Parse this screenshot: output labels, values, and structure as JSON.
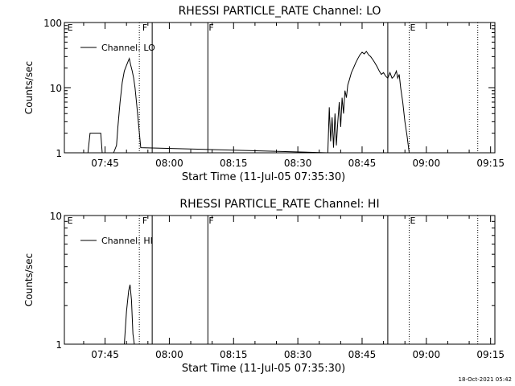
{
  "footer": {
    "timestamp": "18-Oct-2021 05:42"
  },
  "chart_data": [
    {
      "type": "line",
      "title": "RHESSI PARTICLE_RATE Channel: LO",
      "xlabel": "Start Time (11-Jul-05 07:35:30)",
      "ylabel": "Counts/sec",
      "yscale": "log",
      "xlim": [
        "07:35:30",
        "09:16:00"
      ],
      "ylim": [
        1,
        100
      ],
      "xticks": [
        "07:45",
        "08:00",
        "08:15",
        "08:30",
        "08:45",
        "09:00",
        "09:15"
      ],
      "yticks": [
        "1",
        "10",
        "100"
      ],
      "legend": {
        "label": "Channel: LO",
        "position": "top-left"
      },
      "markers": [
        {
          "time": "07:36:00",
          "label": "E",
          "style": "none"
        },
        {
          "time": "07:53:00",
          "label": "",
          "style": "dotted"
        },
        {
          "time": "07:53:30",
          "label": "F",
          "style": "none"
        },
        {
          "time": "07:56:00",
          "label": "",
          "style": "solid"
        },
        {
          "time": "08:09:00",
          "label": "F",
          "style": "solid"
        },
        {
          "time": "08:51:00",
          "label": "",
          "style": "solid"
        },
        {
          "time": "08:56:00",
          "label": "E",
          "style": "dotted"
        },
        {
          "time": "09:12:00",
          "label": "",
          "style": "dotted"
        }
      ],
      "series": [
        {
          "points": [
            [
              "07:41:00",
              1
            ],
            [
              "07:41:30",
              2
            ],
            [
              "07:42:00",
              2
            ],
            [
              "07:43:00",
              2
            ],
            [
              "07:44:00",
              2
            ],
            [
              "07:44:20",
              1
            ],
            [
              "07:45:00",
              1
            ],
            [
              "07:46:00",
              1
            ],
            [
              "07:47:00",
              1
            ],
            [
              "07:47:40",
              1.3
            ],
            [
              "07:48:00",
              2.5
            ],
            [
              "07:48:30",
              6
            ],
            [
              "07:49:00",
              12
            ],
            [
              "07:49:30",
              18
            ],
            [
              "07:50:00",
              22
            ],
            [
              "07:50:20",
              25
            ],
            [
              "07:50:40",
              28
            ],
            [
              "07:51:00",
              22
            ],
            [
              "07:51:20",
              18
            ],
            [
              "07:51:40",
              14
            ],
            [
              "07:52:00",
              10
            ],
            [
              "07:52:20",
              6
            ],
            [
              "07:52:40",
              3.5
            ],
            [
              "07:53:00",
              2
            ],
            [
              "07:53:20",
              1.2
            ],
            [
              "08:37:00",
              1
            ],
            [
              "08:37:20",
              5
            ],
            [
              "08:37:40",
              1.5
            ],
            [
              "08:38:00",
              3.5
            ],
            [
              "08:38:20",
              1.2
            ],
            [
              "08:38:40",
              4
            ],
            [
              "08:39:00",
              1.3
            ],
            [
              "08:39:20",
              3
            ],
            [
              "08:39:40",
              6
            ],
            [
              "08:40:00",
              2.5
            ],
            [
              "08:40:20",
              7
            ],
            [
              "08:40:40",
              4
            ],
            [
              "08:41:00",
              9
            ],
            [
              "08:41:20",
              7
            ],
            [
              "08:41:40",
              11
            ],
            [
              "08:42:00",
              13
            ],
            [
              "08:42:30",
              17
            ],
            [
              "08:43:00",
              20
            ],
            [
              "08:43:30",
              24
            ],
            [
              "08:44:00",
              28
            ],
            [
              "08:44:30",
              32
            ],
            [
              "08:45:00",
              35
            ],
            [
              "08:45:30",
              33
            ],
            [
              "08:46:00",
              36
            ],
            [
              "08:46:30",
              32
            ],
            [
              "08:47:00",
              30
            ],
            [
              "08:47:30",
              27
            ],
            [
              "08:48:00",
              24
            ],
            [
              "08:48:30",
              21
            ],
            [
              "08:49:00",
              18
            ],
            [
              "08:49:30",
              16
            ],
            [
              "08:50:00",
              17
            ],
            [
              "08:50:30",
              15
            ],
            [
              "08:51:00",
              14
            ],
            [
              "08:51:30",
              17
            ],
            [
              "08:52:00",
              14
            ],
            [
              "08:52:30",
              15
            ],
            [
              "08:53:00",
              18
            ],
            [
              "08:53:20",
              14
            ],
            [
              "08:53:40",
              16
            ],
            [
              "08:54:00",
              10
            ],
            [
              "08:54:30",
              6
            ],
            [
              "08:55:00",
              3
            ],
            [
              "08:55:30",
              1.8
            ],
            [
              "08:56:00",
              1
            ]
          ]
        }
      ]
    },
    {
      "type": "line",
      "title": "RHESSI PARTICLE_RATE Channel: HI",
      "xlabel": "Start Time (11-Jul-05 07:35:30)",
      "ylabel": "Counts/sec",
      "yscale": "log",
      "xlim": [
        "07:35:30",
        "09:16:00"
      ],
      "ylim": [
        1,
        10
      ],
      "xticks": [
        "07:45",
        "08:00",
        "08:15",
        "08:30",
        "08:45",
        "09:00",
        "09:15"
      ],
      "yticks": [
        "1",
        "10"
      ],
      "legend": {
        "label": "Channel: HI",
        "position": "top-left"
      },
      "markers": [
        {
          "time": "07:36:00",
          "label": "E",
          "style": "none"
        },
        {
          "time": "07:53:00",
          "label": "",
          "style": "dotted"
        },
        {
          "time": "07:53:30",
          "label": "F",
          "style": "none"
        },
        {
          "time": "07:56:00",
          "label": "",
          "style": "solid"
        },
        {
          "time": "08:09:00",
          "label": "F",
          "style": "solid"
        },
        {
          "time": "08:51:00",
          "label": "",
          "style": "solid"
        },
        {
          "time": "08:56:00",
          "label": "E",
          "style": "dotted"
        },
        {
          "time": "09:12:00",
          "label": "",
          "style": "dotted"
        }
      ],
      "series": [
        {
          "points": [
            [
              "07:49:30",
              1
            ],
            [
              "07:50:00",
              1.8
            ],
            [
              "07:50:30",
              2.6
            ],
            [
              "07:50:50",
              2.9
            ],
            [
              "07:51:10",
              2.2
            ],
            [
              "07:51:30",
              1.2
            ],
            [
              "07:51:50",
              1
            ]
          ]
        }
      ]
    }
  ]
}
